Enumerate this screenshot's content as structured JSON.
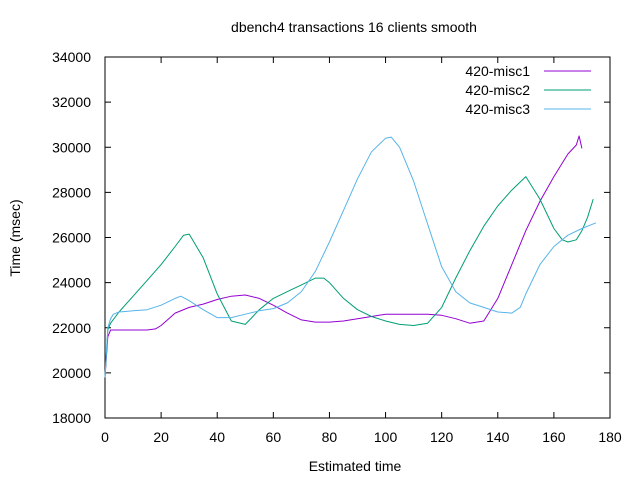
{
  "chart_data": {
    "type": "line",
    "title": "dbench4 transactions 16 clients smooth",
    "xlabel": "Estimated time",
    "ylabel": "Time (msec)",
    "xlim": [
      0,
      180
    ],
    "ylim": [
      18000,
      34000
    ],
    "xticks": [
      0,
      20,
      40,
      60,
      80,
      100,
      120,
      140,
      160,
      180
    ],
    "yticks": [
      18000,
      20000,
      22000,
      24000,
      26000,
      28000,
      30000,
      32000,
      34000
    ],
    "grid": false,
    "legend_position": "top-right",
    "series": [
      {
        "name": "420-misc1",
        "color": "#9400d3",
        "x": [
          0,
          1,
          2,
          5,
          10,
          15,
          18,
          20,
          25,
          30,
          35,
          40,
          45,
          50,
          55,
          60,
          65,
          70,
          75,
          80,
          85,
          90,
          95,
          100,
          105,
          110,
          115,
          120,
          125,
          130,
          135,
          140,
          145,
          150,
          155,
          160,
          165,
          168,
          169,
          170
        ],
        "y": [
          19800,
          21600,
          21900,
          21900,
          21900,
          21900,
          21950,
          22100,
          22650,
          22900,
          23050,
          23250,
          23400,
          23450,
          23300,
          23000,
          22650,
          22350,
          22250,
          22250,
          22300,
          22400,
          22500,
          22600,
          22600,
          22600,
          22600,
          22550,
          22400,
          22200,
          22300,
          23300,
          24800,
          26300,
          27600,
          28700,
          29700,
          30100,
          30500,
          29950
        ]
      },
      {
        "name": "420-misc2",
        "color": "#009e73",
        "x": [
          0,
          1,
          2,
          5,
          10,
          15,
          20,
          25,
          28,
          30,
          35,
          40,
          45,
          50,
          55,
          60,
          65,
          70,
          75,
          78,
          80,
          85,
          90,
          95,
          100,
          105,
          110,
          115,
          120,
          125,
          130,
          135,
          140,
          145,
          150,
          155,
          160,
          163,
          165,
          168,
          170,
          172,
          174
        ],
        "y": [
          19800,
          21900,
          22200,
          22700,
          23400,
          24100,
          24800,
          25600,
          26100,
          26150,
          25100,
          23500,
          22300,
          22150,
          22800,
          23300,
          23600,
          23900,
          24200,
          24200,
          24000,
          23300,
          22800,
          22500,
          22300,
          22150,
          22100,
          22200,
          22900,
          24200,
          25400,
          26500,
          27400,
          28100,
          28700,
          27700,
          26400,
          25900,
          25800,
          25900,
          26300,
          26900,
          27700
        ]
      },
      {
        "name": "420-misc3",
        "color": "#56b4e9",
        "x": [
          0,
          1,
          2,
          3,
          5,
          10,
          15,
          20,
          25,
          27,
          30,
          35,
          40,
          45,
          50,
          55,
          60,
          65,
          70,
          75,
          80,
          85,
          90,
          95,
          100,
          102,
          105,
          110,
          115,
          120,
          125,
          130,
          135,
          140,
          145,
          148,
          150,
          155,
          160,
          165,
          170,
          175
        ],
        "y": [
          19800,
          22000,
          22400,
          22600,
          22700,
          22750,
          22800,
          23000,
          23300,
          23400,
          23200,
          22800,
          22450,
          22450,
          22600,
          22750,
          22850,
          23100,
          23600,
          24500,
          25800,
          27200,
          28600,
          29800,
          30400,
          30450,
          30000,
          28500,
          26600,
          24700,
          23600,
          23100,
          22900,
          22700,
          22650,
          22900,
          23500,
          24800,
          25600,
          26100,
          26400,
          26650
        ]
      }
    ]
  }
}
